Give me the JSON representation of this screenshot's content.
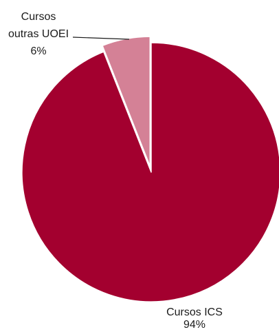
{
  "chart_data": {
    "type": "pie",
    "slices": [
      {
        "name": "Cursos ICS",
        "value": 94,
        "value_label": "94%",
        "color": "#a3002f"
      },
      {
        "name": "Cursos outras UOEI",
        "name_lines": [
          "Cursos",
          "outras UOEI"
        ],
        "value": 6,
        "value_label": "6%",
        "color": "#d48196",
        "exploded": true
      }
    ],
    "legend": "none",
    "slice_border_color": "#ffffff"
  }
}
